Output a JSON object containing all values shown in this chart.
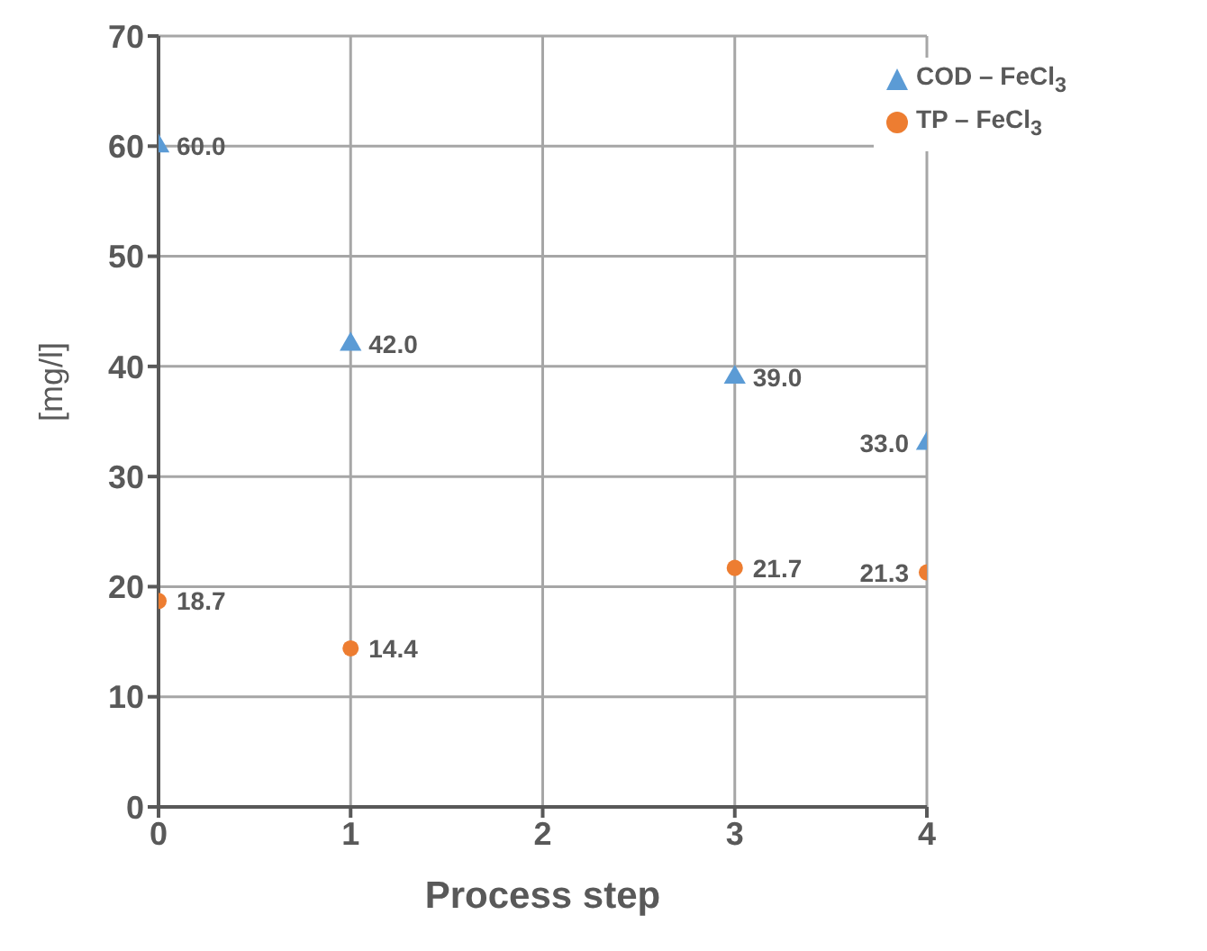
{
  "chart_data": {
    "type": "scatter",
    "xlabel": "Process step",
    "ylabel": "[mg/l]",
    "xlim": [
      0,
      4
    ],
    "xticks": [
      0,
      1,
      2,
      3,
      4
    ],
    "ylim": [
      0,
      70
    ],
    "yticks": [
      0,
      10,
      20,
      30,
      40,
      50,
      60,
      70
    ],
    "grid": true,
    "legend": "top right",
    "series": [
      {
        "name": "COD – FeCl$_{3}$",
        "color": "#5b9bd5",
        "marker": "triangle",
        "x": [
          0,
          1,
          3,
          4
        ],
        "values": [
          60.0,
          42.0,
          39.0,
          33.0
        ],
        "value_labels": [
          "60.0",
          "42.0",
          "39.0",
          "33.0"
        ]
      },
      {
        "name": "TP – FeCl$_{3}$",
        "color": "#ed7d31",
        "marker": "circle",
        "x": [
          0,
          1,
          3,
          4
        ],
        "values": [
          18.7,
          14.4,
          21.7,
          21.3
        ],
        "value_labels": [
          "18.7",
          "14.4",
          "21.7",
          "21.3"
        ]
      }
    ]
  }
}
